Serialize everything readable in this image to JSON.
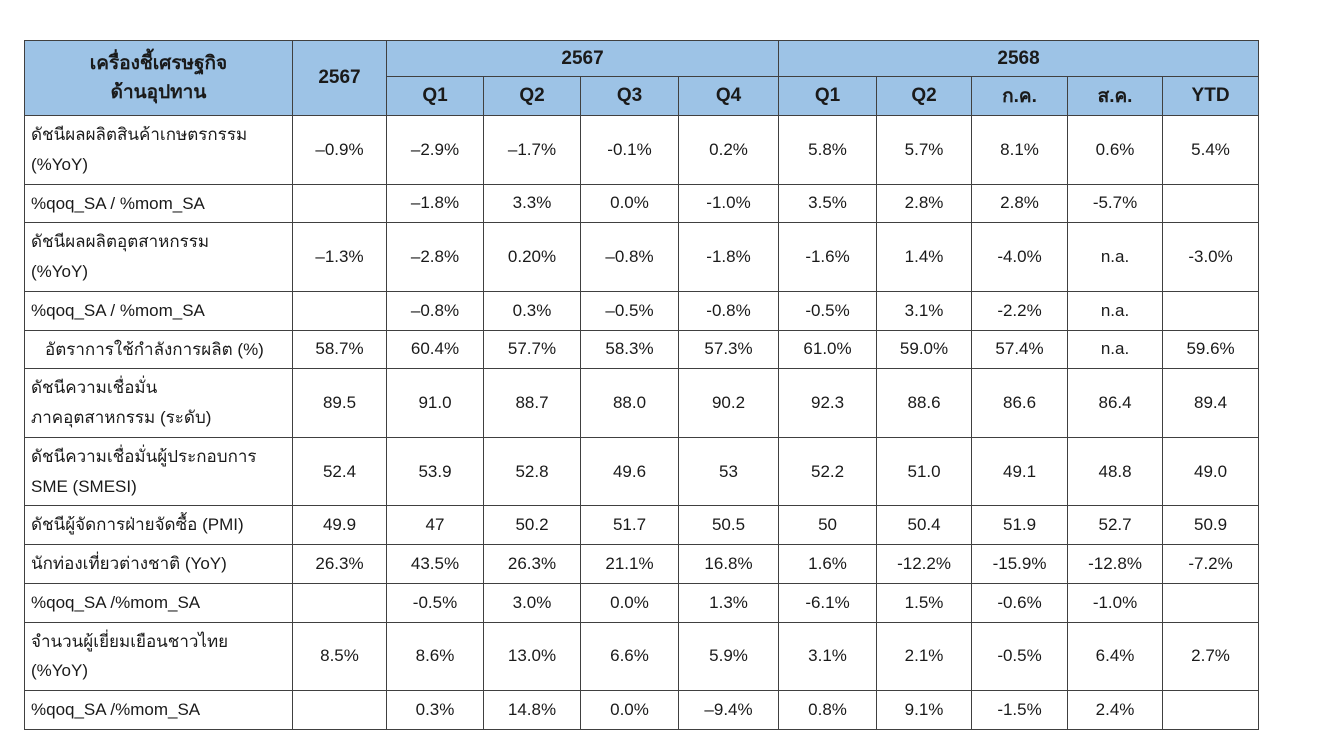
{
  "table": {
    "header": {
      "fill_color": "#9dc3e6",
      "border_color": "#404040",
      "row_label_title": "เครื่องชี้เศรษฐกิจ\nด้านอุปทาน",
      "annual_col": "2567",
      "group_2567": "2567",
      "group_2568": "2568",
      "sub_2567": [
        "Q1",
        "Q2",
        "Q3",
        "Q4"
      ],
      "sub_2568": [
        "Q1",
        "Q2",
        "ก.ค.",
        "ส.ค.",
        "YTD"
      ]
    },
    "rows": [
      {
        "label": "ดัชนีผลผลิตสินค้าเกษตรกรรม\n(%YoY)",
        "indent": false,
        "tall": true,
        "values": [
          "–0.9%",
          "–2.9%",
          "–1.7%",
          "-0.1%",
          "0.2%",
          "5.8%",
          "5.7%",
          "8.1%",
          "0.6%",
          "5.4%"
        ]
      },
      {
        "label": "%qoq_SA / %mom_SA",
        "indent": false,
        "tall": false,
        "values": [
          "",
          "–1.8%",
          "3.3%",
          "0.0%",
          "-1.0%",
          "3.5%",
          "2.8%",
          "2.8%",
          "-5.7%",
          ""
        ]
      },
      {
        "label": "ดัชนีผลผลิตอุตสาหกรรม\n(%YoY)",
        "indent": false,
        "tall": true,
        "values": [
          "–1.3%",
          "–2.8%",
          "0.20%",
          "–0.8%",
          "-1.8%",
          "-1.6%",
          "1.4%",
          "-4.0%",
          "n.a.",
          "-3.0%"
        ]
      },
      {
        "label": "%qoq_SA / %mom_SA",
        "indent": false,
        "tall": false,
        "values": [
          "",
          "–0.8%",
          "0.3%",
          "–0.5%",
          "-0.8%",
          "-0.5%",
          "3.1%",
          "-2.2%",
          "n.a.",
          ""
        ]
      },
      {
        "label": "อัตราการใช้กำลังการผลิต (%)",
        "indent": true,
        "tall": false,
        "values": [
          "58.7%",
          "60.4%",
          "57.7%",
          "58.3%",
          "57.3%",
          "61.0%",
          "59.0%",
          "57.4%",
          "n.a.",
          "59.6%"
        ]
      },
      {
        "label": "ดัชนีความเชื่อมั่น\nภาคอุตสาหกรรม (ระดับ)",
        "indent": false,
        "tall": true,
        "values": [
          "89.5",
          "91.0",
          "88.7",
          "88.0",
          "90.2",
          "92.3",
          "88.6",
          "86.6",
          "86.4",
          "89.4"
        ]
      },
      {
        "label": "ดัชนีความเชื่อมั่นผู้ประกอบการ\nSME (SMESI)",
        "indent": false,
        "tall": true,
        "values": [
          "52.4",
          "53.9",
          "52.8",
          "49.6",
          "53",
          "52.2",
          "51.0",
          "49.1",
          "48.8",
          "49.0"
        ]
      },
      {
        "label": "ดัชนีผู้จัดการฝ่ายจัดซื้อ (PMI)",
        "indent": false,
        "tall": false,
        "values": [
          "49.9",
          "47",
          "50.2",
          "51.7",
          "50.5",
          "50",
          "50.4",
          "51.9",
          "52.7",
          "50.9"
        ]
      },
      {
        "label": "นักท่องเที่ยวต่างชาติ (YoY)",
        "indent": false,
        "tall": false,
        "values": [
          "26.3%",
          "43.5%",
          "26.3%",
          "21.1%",
          "16.8%",
          "1.6%",
          "-12.2%",
          "-15.9%",
          "-12.8%",
          "-7.2%"
        ]
      },
      {
        "label": "%qoq_SA /%mom_SA",
        "indent": false,
        "tall": false,
        "values": [
          "",
          "-0.5%",
          "3.0%",
          "0.0%",
          "1.3%",
          "-6.1%",
          "1.5%",
          "-0.6%",
          "-1.0%",
          ""
        ]
      },
      {
        "label": "จำนวนผู้เยี่ยมเยือนชาวไทย\n(%YoY)",
        "indent": false,
        "tall": true,
        "values": [
          "8.5%",
          "8.6%",
          "13.0%",
          "6.6%",
          "5.9%",
          "3.1%",
          "2.1%",
          "-0.5%",
          "6.4%",
          "2.7%"
        ]
      },
      {
        "label": "%qoq_SA /%mom_SA",
        "indent": false,
        "tall": false,
        "values": [
          "",
          "0.3%",
          "14.8%",
          "0.0%",
          "–9.4%",
          "0.8%",
          "9.1%",
          "-1.5%",
          "2.4%",
          ""
        ]
      }
    ]
  }
}
